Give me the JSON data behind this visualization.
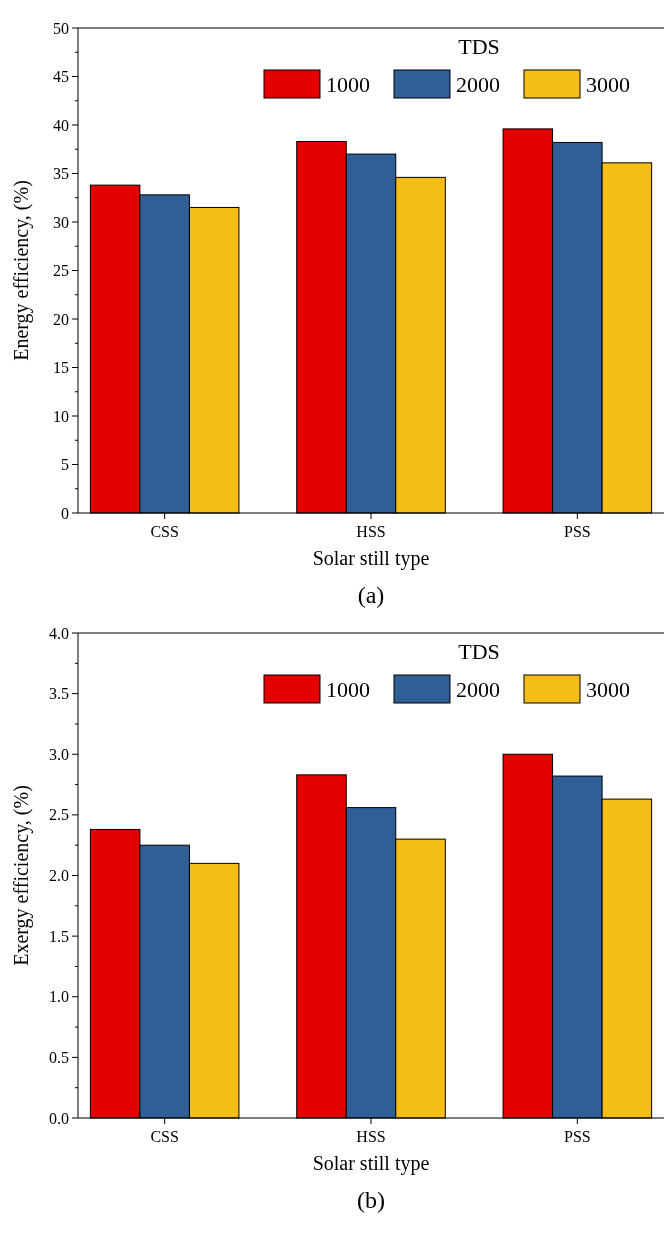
{
  "chart_data": [
    {
      "type": "bar",
      "categories": [
        "CSS",
        "HSS",
        "PSS"
      ],
      "xlabel": "Solar still type",
      "ylabel": "Energy efficiency, (%)",
      "legend_title": "TDS",
      "legend": "top right",
      "grid": false,
      "ylim": [
        0,
        50
      ],
      "yticks": [
        0,
        {
          "value": 2.5,
          "label": null
        },
        5,
        {
          "value": 7.5,
          "label": null
        },
        10,
        {
          "value": 12.5,
          "label": null
        },
        15,
        {
          "value": 17.5,
          "label": null
        },
        20,
        {
          "value": 22.5,
          "label": null
        },
        25,
        {
          "value": 27.5,
          "label": null
        },
        30,
        {
          "value": 32.5,
          "label": null
        },
        35,
        {
          "value": 37.5,
          "label": null
        },
        40,
        {
          "value": 42.5,
          "label": null
        },
        45,
        {
          "value": 47.5,
          "label": null
        },
        50
      ],
      "annotations": [
        "(a)"
      ],
      "series": [
        {
          "name": "1000",
          "color": "#e50000",
          "values": [
            33.8,
            38.3,
            39.6
          ]
        },
        {
          "name": "2000",
          "color": "#2f5f94",
          "values": [
            32.8,
            37.0,
            38.2
          ]
        },
        {
          "name": "3000",
          "color": "#f5be16",
          "values": [
            31.5,
            34.6,
            36.1
          ]
        }
      ]
    },
    {
      "type": "bar",
      "categories": [
        "CSS",
        "HSS",
        "PSS"
      ],
      "xlabel": "Solar still type",
      "ylabel": "Exergy efficiency, (%)",
      "legend_title": "TDS",
      "legend": "top right",
      "grid": false,
      "ylim": [
        0,
        4
      ],
      "yticks": [
        {
          "value": 0,
          "label": "0.0"
        },
        {
          "value": 0.25,
          "label": null
        },
        {
          "value": 0.5,
          "label": "0.5"
        },
        {
          "value": 0.75,
          "label": null
        },
        {
          "value": 1,
          "label": "1.0"
        },
        {
          "value": 1.25,
          "label": null
        },
        {
          "value": 1.5,
          "label": "1.5"
        },
        {
          "value": 1.75,
          "label": null
        },
        {
          "value": 2,
          "label": "2.0"
        },
        {
          "value": 2.25,
          "label": null
        },
        {
          "value": 2.5,
          "label": "2.5"
        },
        {
          "value": 2.75,
          "label": null
        },
        {
          "value": 3,
          "label": "3.0"
        },
        {
          "value": 3.25,
          "label": null
        },
        {
          "value": 3.5,
          "label": "3.5"
        },
        {
          "value": 3.75,
          "label": null
        },
        {
          "value": 4,
          "label": "4.0"
        }
      ],
      "annotations": [
        "(b)"
      ],
      "series": [
        {
          "name": "1000",
          "color": "#e50000",
          "values": [
            2.38,
            2.83,
            3.0
          ]
        },
        {
          "name": "2000",
          "color": "#2f5f94",
          "values": [
            2.25,
            2.56,
            2.82
          ]
        },
        {
          "name": "3000",
          "color": "#f5be16",
          "values": [
            2.1,
            2.3,
            2.63
          ]
        }
      ]
    }
  ]
}
